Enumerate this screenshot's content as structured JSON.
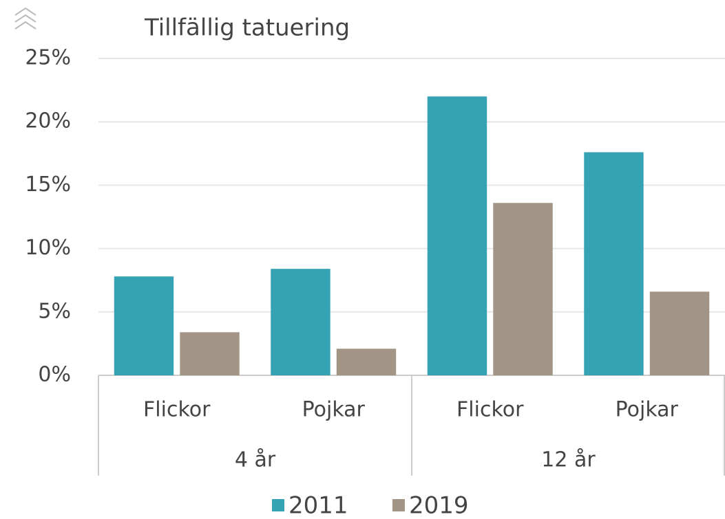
{
  "chart_data": {
    "type": "bar",
    "title": "Tillfällig tatuering",
    "categories": [
      "Flickor",
      "Pojkar",
      "Flickor",
      "Pojkar"
    ],
    "groups": [
      "4 år",
      "12 år"
    ],
    "series": [
      {
        "name": "2011",
        "color": "#36a3b4",
        "values": [
          7.8,
          8.4,
          22.0,
          17.6
        ]
      },
      {
        "name": "2019",
        "color": "#a39585",
        "values": [
          3.4,
          2.1,
          13.6,
          6.6
        ]
      }
    ],
    "ylim": [
      0,
      25
    ],
    "yticks": [
      {
        "value": 0,
        "label": "0%"
      },
      {
        "value": 5,
        "label": "5%"
      },
      {
        "value": 10,
        "label": "10%"
      },
      {
        "value": 15,
        "label": "15%"
      },
      {
        "value": 20,
        "label": "20%"
      },
      {
        "value": 25,
        "label": "25%"
      }
    ],
    "grid": true,
    "legend": "bottom"
  }
}
